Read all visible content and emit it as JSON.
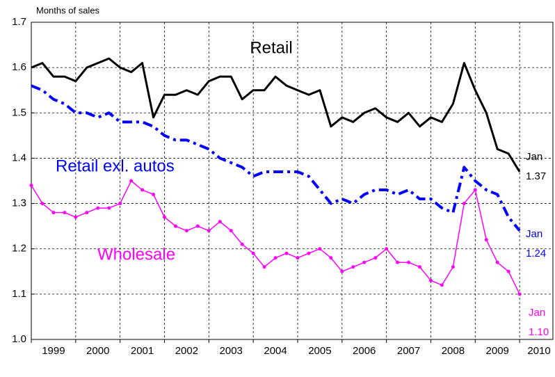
{
  "chart_data": {
    "type": "line",
    "y_label": "Months of sales",
    "x": [
      1999,
      1999.25,
      1999.5,
      1999.75,
      2000,
      2000.25,
      2000.5,
      2000.75,
      2001,
      2001.25,
      2001.5,
      2001.75,
      2002,
      2002.25,
      2002.5,
      2002.75,
      2003,
      2003.25,
      2003.5,
      2003.75,
      2004,
      2004.25,
      2004.5,
      2004.75,
      2005,
      2005.25,
      2005.5,
      2005.75,
      2006,
      2006.25,
      2006.5,
      2006.75,
      2007,
      2007.25,
      2007.5,
      2007.75,
      2008,
      2008.25,
      2008.5,
      2008.75,
      2009,
      2009.25,
      2009.5,
      2009.75,
      2010
    ],
    "series": [
      {
        "name": "Retail",
        "color": "#000000",
        "style": "solid",
        "markers": false,
        "end_note": "Jan",
        "end_value_label": "1.37",
        "values": [
          1.6,
          1.61,
          1.58,
          1.58,
          1.57,
          1.6,
          1.61,
          1.62,
          1.6,
          1.59,
          1.61,
          1.49,
          1.54,
          1.54,
          1.55,
          1.54,
          1.57,
          1.58,
          1.58,
          1.53,
          1.55,
          1.55,
          1.58,
          1.56,
          1.55,
          1.54,
          1.55,
          1.47,
          1.49,
          1.48,
          1.5,
          1.51,
          1.49,
          1.48,
          1.5,
          1.47,
          1.49,
          1.48,
          1.52,
          1.61,
          1.55,
          1.5,
          1.42,
          1.41,
          1.37
        ]
      },
      {
        "name": "Retail exl. autos",
        "color": "#0000ff",
        "style": "dashdot",
        "markers": false,
        "end_note": "Jan",
        "end_value_label": "1.24",
        "values": [
          1.56,
          1.55,
          1.53,
          1.52,
          1.5,
          1.5,
          1.49,
          1.5,
          1.48,
          1.48,
          1.48,
          1.47,
          1.45,
          1.44,
          1.44,
          1.43,
          1.42,
          1.4,
          1.39,
          1.38,
          1.36,
          1.37,
          1.37,
          1.37,
          1.37,
          1.36,
          1.33,
          1.3,
          1.31,
          1.3,
          1.32,
          1.33,
          1.33,
          1.32,
          1.33,
          1.31,
          1.31,
          1.29,
          1.28,
          1.38,
          1.35,
          1.33,
          1.32,
          1.27,
          1.24
        ]
      },
      {
        "name": "Wholesale",
        "color": "#ff00ff",
        "style": "solid",
        "markers": true,
        "end_note": "Jan",
        "end_value_label": "1.10",
        "values": [
          1.34,
          1.3,
          1.28,
          1.28,
          1.27,
          1.28,
          1.29,
          1.29,
          1.3,
          1.35,
          1.33,
          1.32,
          1.27,
          1.25,
          1.24,
          1.25,
          1.24,
          1.26,
          1.24,
          1.21,
          1.19,
          1.16,
          1.18,
          1.19,
          1.18,
          1.19,
          1.2,
          1.18,
          1.15,
          1.16,
          1.17,
          1.18,
          1.2,
          1.17,
          1.17,
          1.16,
          1.13,
          1.12,
          1.16,
          1.3,
          1.33,
          1.22,
          1.17,
          1.15,
          1.1
        ]
      }
    ],
    "xlim": [
      1999,
      2010.75
    ],
    "xticks": [
      1999,
      2000,
      2001,
      2002,
      2003,
      2004,
      2005,
      2006,
      2007,
      2008,
      2009,
      2010
    ],
    "ylim": [
      1,
      1.7
    ],
    "yticks": [
      {
        "value": 1,
        "label": "1.0"
      },
      1.1,
      1.2,
      1.3,
      1.4,
      1.5,
      1.6,
      1.7
    ],
    "grid": true
  }
}
